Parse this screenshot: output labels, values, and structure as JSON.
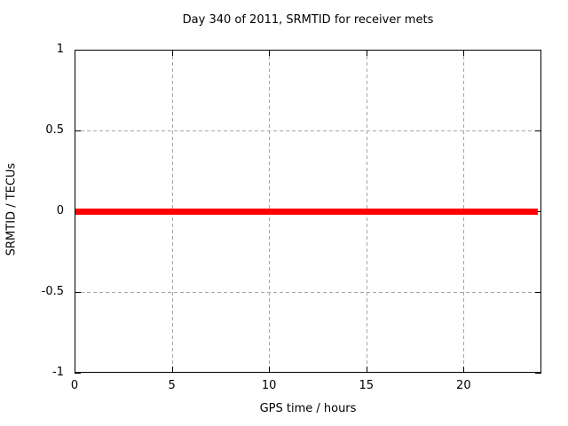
{
  "chart_data": {
    "type": "line",
    "title": "Day 340 of 2011, SRMTID for receiver mets",
    "xlabel": "GPS time / hours",
    "ylabel": "SRMTID / TECUs",
    "xlim": [
      0,
      24
    ],
    "ylim": [
      -1,
      1
    ],
    "xticks": [
      0,
      5,
      10,
      15,
      20
    ],
    "xtick_labels": [
      "0",
      "5",
      "10",
      "15",
      "20"
    ],
    "yticks": [
      -1,
      -0.5,
      0,
      0.5,
      1
    ],
    "ytick_labels": [
      "-1",
      "-0.5",
      "0",
      "0.5",
      "1"
    ],
    "grid": true,
    "legend": "none",
    "colors": {
      "series": "#ff0000",
      "grid": "#a6a6a6",
      "axis": "#000000",
      "text": "#000000",
      "background": "#ffffff"
    },
    "series": [
      {
        "name": "SRMTID",
        "color": "#ff0000",
        "x": [
          0,
          23.8
        ],
        "y": [
          0,
          0
        ]
      }
    ]
  }
}
